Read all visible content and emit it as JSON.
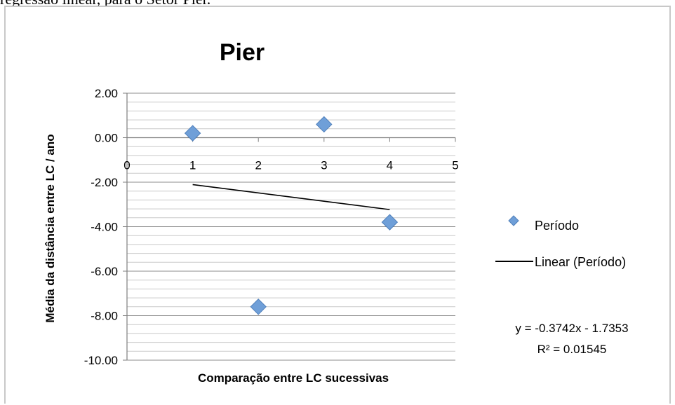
{
  "page": {
    "cut_text": "regressão linear, para o Setor Pier."
  },
  "chart_data": {
    "type": "scatter",
    "title": "Pier",
    "xlabel": "Comparação entre LC sucessivas",
    "ylabel": "Média da distância entre LC / ano",
    "xlim": [
      0,
      5
    ],
    "ylim": [
      -10,
      2
    ],
    "x_ticks": [
      "0",
      "1",
      "2",
      "3",
      "4",
      "5"
    ],
    "y_ticks": [
      "2.00",
      "0.00",
      "-2.00",
      "-4.00",
      "-6.00",
      "-8.00",
      "-10.00"
    ],
    "grid": true,
    "legend_position": "right",
    "series": [
      {
        "name": "Período",
        "color": "#6f9fd8",
        "marker": "diamond",
        "points": [
          {
            "x": 1,
            "y": 0.2
          },
          {
            "x": 2,
            "y": -7.6
          },
          {
            "x": 3,
            "y": 0.6
          },
          {
            "x": 4,
            "y": -3.8
          }
        ]
      }
    ],
    "trendline": {
      "name": "Linear (Período)",
      "slope": -0.3742,
      "intercept": -1.7353,
      "x_range": [
        1,
        4
      ],
      "color": "#000000"
    },
    "annotations": {
      "equation": "y = -0.3742x - 1.7353",
      "r_squared": "R² = 0.01545"
    }
  }
}
